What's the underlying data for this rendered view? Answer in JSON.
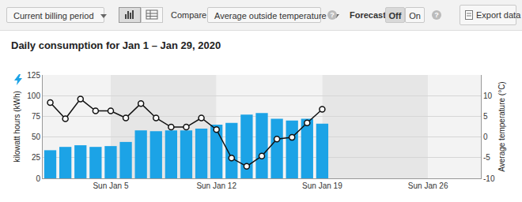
{
  "toolbar": {
    "period": "Current billing period",
    "compare_label": "Compare",
    "compare_value": "Average outside temperature",
    "help": "?",
    "forecast_label": "Forecast",
    "forecast_options": [
      "Off",
      "On"
    ],
    "forecast_selected": "Off",
    "export": "Export data"
  },
  "chart_data": {
    "type": "bar",
    "title": "Daily consumption for Jan 1 – Jan 29, 2020",
    "categories": [
      null,
      null,
      null,
      null,
      "Sun Jan 5",
      null,
      null,
      null,
      null,
      null,
      null,
      "Sun Jan 12",
      null,
      null,
      null,
      null,
      null,
      null,
      "Sun Jan 19",
      null,
      null,
      null,
      null,
      null,
      null,
      "Sun Jan 26",
      null,
      null,
      null
    ],
    "y_label": "kilowatt hours (kWh)",
    "y2_label": "Average temperature (°C)",
    "series": [
      {
        "type": "bar",
        "color": "#1ca3e6",
        "values": [
          34,
          38,
          40,
          38,
          39,
          44,
          58,
          57,
          58,
          58,
          60,
          65,
          67,
          77,
          79,
          72,
          70,
          72,
          66,
          null,
          null,
          null,
          null,
          null,
          null,
          null,
          null,
          null,
          null
        ]
      },
      {
        "type": "line",
        "axis": "y2",
        "color": "#111111",
        "marker": "circle",
        "values": [
          8.3,
          4.4,
          9.2,
          6.3,
          6.3,
          4.6,
          8.1,
          4.6,
          2.4,
          2.4,
          4.6,
          1.8,
          -5.1,
          -7.1,
          -4.6,
          -0.5,
          -0.1,
          3.4,
          6.7,
          null,
          null,
          null,
          null,
          null,
          null,
          null,
          null,
          null,
          null
        ]
      }
    ],
    "ylim": [
      0,
      125
    ],
    "yticks": [
      0,
      25,
      50,
      75,
      100,
      125
    ],
    "y2lim": [
      -10,
      15
    ],
    "y2ticks": [
      -10,
      -5,
      0,
      5,
      10
    ],
    "grid": true
  }
}
